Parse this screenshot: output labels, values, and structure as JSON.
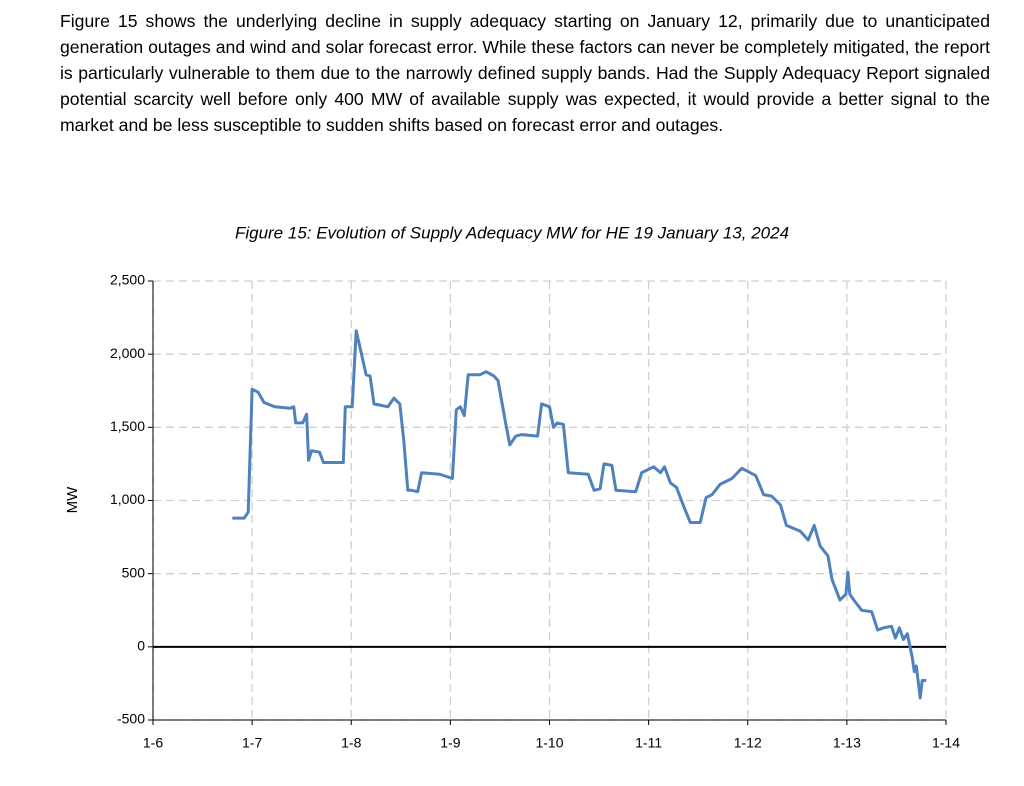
{
  "paragraph": "Figure 15 shows the underlying decline in supply adequacy starting on January 12, primarily due to unanticipated generation outages and wind and solar forecast error. While these factors can never be completely mitigated, the report is particularly vulnerable to them due to the narrowly defined supply bands. Had the Supply Adequacy Report signaled potential scarcity well before only 400 MW of available supply was expected, it would provide a better signal to the market and be less susceptible to sudden shifts based on forecast error and outages.",
  "chart_data": {
    "type": "line",
    "title": "Figure 15: Evolution of Supply Adequacy MW for HE 19 January 13, 2024",
    "y_label": "MW",
    "xlim": [
      6,
      14
    ],
    "xticks": [
      {
        "value": 6,
        "label": "1-6"
      },
      {
        "value": 7,
        "label": "1-7"
      },
      {
        "value": 8,
        "label": "1-8"
      },
      {
        "value": 9,
        "label": "1-9"
      },
      {
        "value": 10,
        "label": "1-10"
      },
      {
        "value": 11,
        "label": "1-11"
      },
      {
        "value": 12,
        "label": "1-12"
      },
      {
        "value": 13,
        "label": "1-13"
      },
      {
        "value": 14,
        "label": "1-14"
      }
    ],
    "ylim": [
      -500,
      2500
    ],
    "yticks": [
      {
        "value": -500,
        "label": "-500"
      },
      0,
      500,
      {
        "value": 1000,
        "label": "1,000"
      },
      {
        "value": 1500,
        "label": "1,500"
      },
      {
        "value": 2000,
        "label": "2,000"
      },
      {
        "value": 2500,
        "label": "2,500"
      }
    ],
    "grid": true,
    "x": [
      6.8,
      6.92,
      6.96,
      7.0,
      7.06,
      7.12,
      7.23,
      7.38,
      7.42,
      7.44,
      7.51,
      7.55,
      7.57,
      7.6,
      7.68,
      7.72,
      7.92,
      7.94,
      8.01,
      8.05,
      8.09,
      8.15,
      8.19,
      8.23,
      8.37,
      8.43,
      8.49,
      8.53,
      8.57,
      8.61,
      8.67,
      8.71,
      8.89,
      9.02,
      9.06,
      9.1,
      9.14,
      9.18,
      9.3,
      9.36,
      9.44,
      9.48,
      9.56,
      9.6,
      9.66,
      9.72,
      9.88,
      9.92,
      10.0,
      10.04,
      10.08,
      10.14,
      10.19,
      10.39,
      10.45,
      10.51,
      10.55,
      10.63,
      10.67,
      10.87,
      10.93,
      10.99,
      11.05,
      11.12,
      11.16,
      11.22,
      11.28,
      11.36,
      11.42,
      11.52,
      11.58,
      11.64,
      11.72,
      11.84,
      11.94,
      12.08,
      12.16,
      12.24,
      12.33,
      12.39,
      12.53,
      12.61,
      12.67,
      12.73,
      12.81,
      12.85,
      12.89,
      12.93,
      12.99,
      13.01,
      13.03,
      13.07,
      13.15,
      13.25,
      13.31,
      13.37,
      13.45,
      13.49,
      13.53,
      13.57,
      13.61,
      13.66,
      13.68,
      13.7,
      13.74,
      13.76,
      13.8
    ],
    "series": [
      {
        "name": "Supply Adequacy MW",
        "color": "#4f81bd",
        "values": [
          880,
          880,
          920,
          1760,
          1740,
          1670,
          1640,
          1630,
          1640,
          1530,
          1530,
          1590,
          1275,
          1340,
          1330,
          1260,
          1260,
          1640,
          1640,
          2160,
          2040,
          1860,
          1850,
          1660,
          1640,
          1700,
          1660,
          1410,
          1070,
          1070,
          1060,
          1190,
          1180,
          1150,
          1620,
          1640,
          1580,
          1860,
          1860,
          1880,
          1850,
          1820,
          1520,
          1380,
          1440,
          1450,
          1440,
          1660,
          1640,
          1500,
          1530,
          1520,
          1190,
          1180,
          1070,
          1080,
          1250,
          1240,
          1070,
          1060,
          1190,
          1210,
          1230,
          1190,
          1230,
          1120,
          1090,
          950,
          850,
          850,
          1020,
          1040,
          1110,
          1150,
          1220,
          1170,
          1040,
          1030,
          970,
          830,
          790,
          730,
          830,
          690,
          620,
          460,
          390,
          320,
          360,
          510,
          360,
          320,
          250,
          240,
          115,
          130,
          140,
          60,
          130,
          50,
          90,
          -75,
          -170,
          -130,
          -350,
          -230,
          -230
        ]
      }
    ]
  }
}
